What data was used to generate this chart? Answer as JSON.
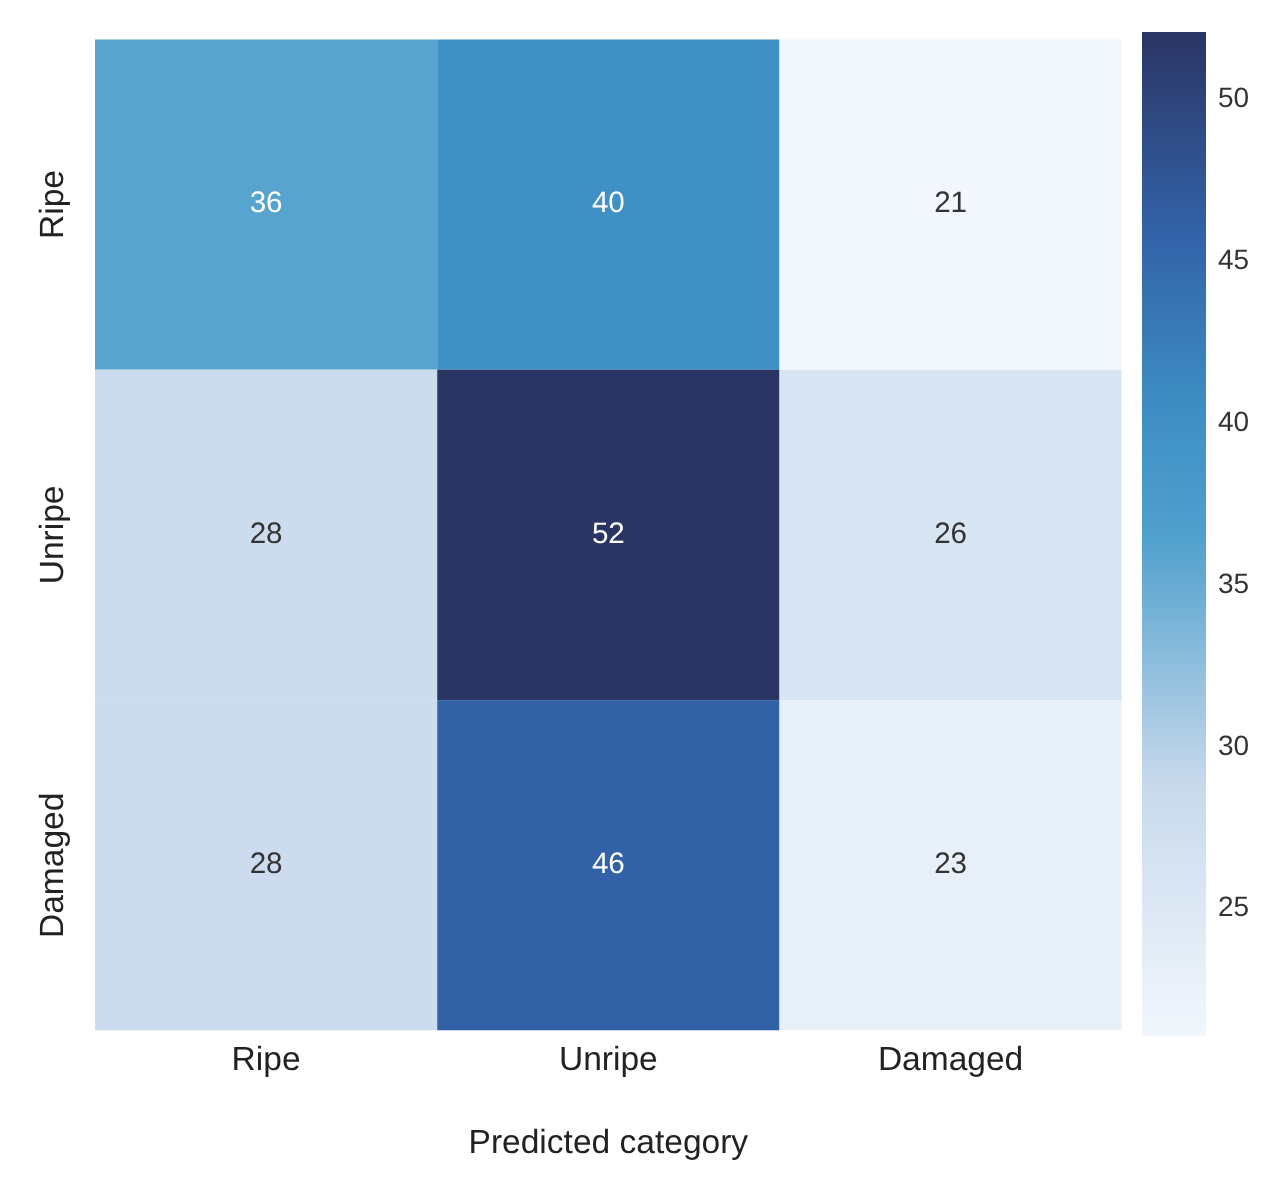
{
  "chart_data": {
    "type": "heatmap",
    "xlabel": "Predicted category",
    "categories": [
      "Ripe",
      "Unripe",
      "Damaged"
    ],
    "y_categories": [
      "Ripe",
      "Unripe",
      "Damaged"
    ],
    "cells": [
      [
        36,
        40,
        21
      ],
      [
        28,
        52,
        26
      ],
      [
        28,
        46,
        23
      ]
    ],
    "data_labels": true,
    "clim": [
      21,
      52
    ],
    "cticks": [
      25,
      30,
      35,
      40,
      45,
      50
    ]
  }
}
